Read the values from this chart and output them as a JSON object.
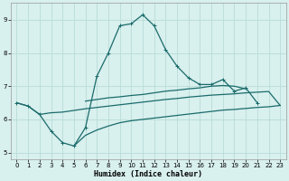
{
  "xlabel": "Humidex (Indice chaleur)",
  "background_color": "#d8f0ee",
  "grid_color": "#b8dcd8",
  "line_color": "#1a6b6b",
  "x_values": [
    0,
    1,
    2,
    3,
    4,
    5,
    6,
    7,
    8,
    9,
    10,
    11,
    12,
    13,
    14,
    15,
    16,
    17,
    18,
    19,
    20,
    21,
    22,
    23
  ],
  "line1_y": [
    6.5,
    6.4,
    6.15,
    5.65,
    5.3,
    5.2,
    5.75,
    7.3,
    8.0,
    8.82,
    8.88,
    9.15,
    8.82,
    8.1,
    7.6,
    7.25,
    7.05,
    7.05,
    7.2,
    6.85,
    6.95,
    6.5,
    null,
    null
  ],
  "line2_y": [
    6.5,
    6.4,
    6.15,
    null,
    null,
    null,
    6.55,
    6.6,
    6.65,
    6.68,
    6.72,
    6.75,
    6.8,
    6.85,
    6.88,
    6.92,
    6.95,
    7.0,
    7.02,
    7.0,
    6.92,
    null,
    null,
    null
  ],
  "line3_y": [
    null,
    null,
    6.15,
    6.2,
    6.22,
    6.27,
    6.32,
    6.36,
    6.4,
    6.44,
    6.48,
    6.52,
    6.56,
    6.6,
    6.63,
    6.67,
    6.7,
    6.73,
    6.75,
    6.77,
    6.8,
    6.82,
    6.84,
    6.42
  ],
  "line4_y": [
    null,
    null,
    null,
    null,
    null,
    5.2,
    5.52,
    5.68,
    5.8,
    5.9,
    5.96,
    6.0,
    6.04,
    6.08,
    6.12,
    6.16,
    6.2,
    6.24,
    6.28,
    6.3,
    6.33,
    6.36,
    6.38,
    6.42
  ],
  "xlim": [
    -0.5,
    23.5
  ],
  "ylim": [
    4.8,
    9.5
  ],
  "yticks": [
    5,
    6,
    7,
    8,
    9
  ],
  "xticks": [
    0,
    1,
    2,
    3,
    4,
    5,
    6,
    7,
    8,
    9,
    10,
    11,
    12,
    13,
    14,
    15,
    16,
    17,
    18,
    19,
    20,
    21,
    22,
    23
  ]
}
